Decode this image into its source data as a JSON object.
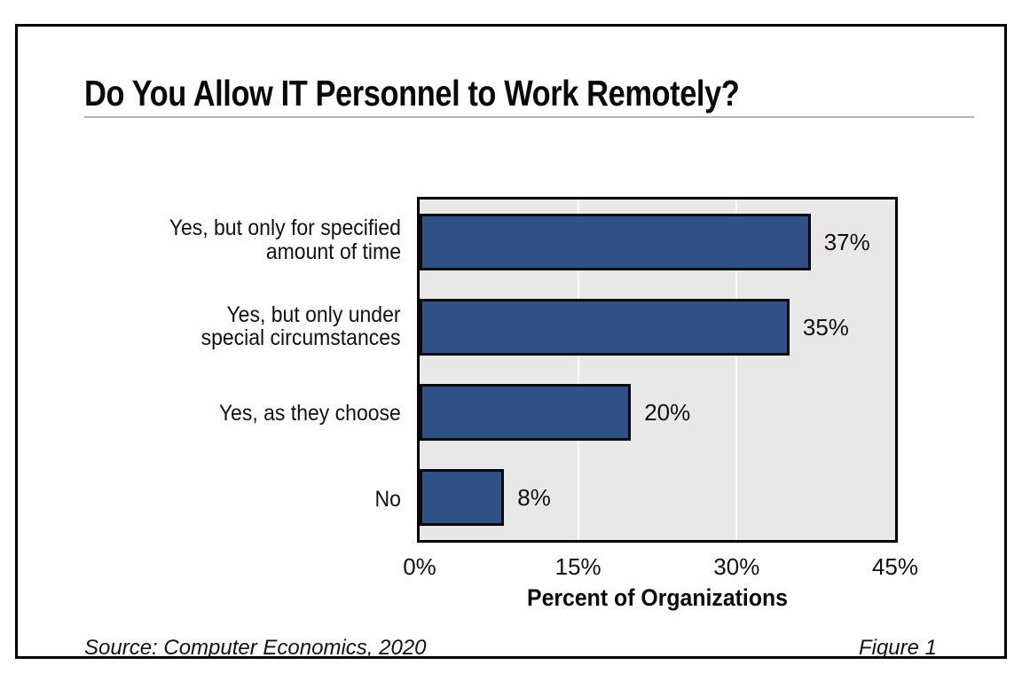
{
  "header": {
    "title": "Do You Allow IT Personnel to Work Remotely?"
  },
  "footer": {
    "source": "Source: Computer Economics, 2020",
    "figure_label": "Figure 1"
  },
  "colors": {
    "bar": "#305185",
    "bar_border": "#0a0a0a",
    "plot_background": "#e8e8e8",
    "gridline": "#fafafa",
    "frame_border": "#000000",
    "title_rule": "#b3b3b3"
  },
  "chart_data": {
    "type": "bar",
    "orientation": "horizontal",
    "title": "Do You Allow IT Personnel to Work Remotely?",
    "categories": [
      "Yes, but only for specified amount of time",
      "Yes, but only under special circumstances",
      "Yes, as they choose",
      "No"
    ],
    "category_lines": [
      [
        "Yes, but only for specified",
        "amount of time"
      ],
      [
        "Yes, but only under",
        "special circumstances"
      ],
      [
        "Yes, as they choose"
      ],
      [
        "No"
      ]
    ],
    "values": [
      37,
      35,
      20,
      8
    ],
    "value_labels": [
      "37%",
      "35%",
      "20%",
      "8%"
    ],
    "xlabel": "Percent of Organizations",
    "ylabel": "",
    "xlim": [
      0,
      45
    ],
    "xtick_values": [
      0,
      15,
      30,
      45
    ],
    "xtick_labels": [
      "0%",
      "15%",
      "30%",
      "45%"
    ],
    "gridline_values": [
      15,
      30
    ],
    "grid": "vertical-only",
    "legend": "none"
  }
}
